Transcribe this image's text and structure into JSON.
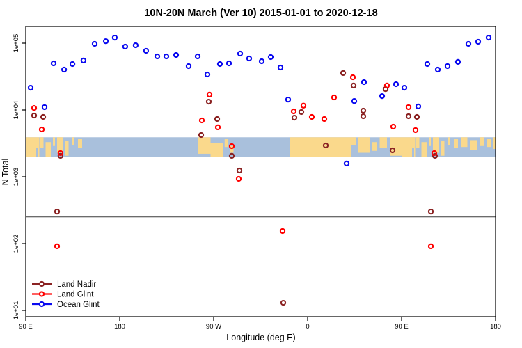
{
  "title": "10N-20N March (Ver 10)   2015-01-01 to 2020-12-18",
  "legend": {
    "entries": [
      "Land Nadir",
      "Land Glint",
      "Ocean Glint"
    ]
  },
  "colors": {
    "land_nadir": "#8b2323",
    "land_glint": "#ff0000",
    "ocean_glint": "#0a0af0",
    "map_ocean": "#a9c0dc",
    "map_land": "#fad98c",
    "reference_line": "#3a3a3a",
    "frame": "#000000"
  },
  "chart_data": {
    "type": "scatter",
    "title": "10N-20N March (Ver 10)   2015-01-01 to 2020-12-18",
    "xlabel": "Longitude (deg E)",
    "ylabel": "N Total",
    "x_axis": {
      "range_deg": [
        0,
        450
      ],
      "ticks": [
        {
          "deg": 0,
          "label": "90 E"
        },
        {
          "deg": 90,
          "label": "180"
        },
        {
          "deg": 180,
          "label": "90 W"
        },
        {
          "deg": 270,
          "label": "0"
        },
        {
          "deg": 360,
          "label": "90 E"
        },
        {
          "deg": 450,
          "label": "180"
        }
      ]
    },
    "y_axis": {
      "scale": "log10",
      "range": [
        8,
        180000
      ],
      "ticks": [
        {
          "value": 10,
          "label": "1e+01"
        },
        {
          "value": 100,
          "label": "1e+02"
        },
        {
          "value": 1000,
          "label": "1e+03"
        },
        {
          "value": 10000,
          "label": "1e+04"
        },
        {
          "value": 100000,
          "label": "1e+05"
        }
      ]
    },
    "reference_line": {
      "value": 250
    },
    "map_band": {
      "top_n": 3900,
      "bottom_n": 2000,
      "land_segments": [
        [
          0,
          13,
          0,
          1
        ],
        [
          13.5,
          17,
          0,
          0.55
        ],
        [
          19,
          24,
          0.25,
          1
        ],
        [
          26,
          28,
          0,
          0.45
        ],
        [
          30,
          36,
          0,
          0.8
        ],
        [
          37.5,
          41,
          0.2,
          0.95
        ],
        [
          44,
          46.5,
          0,
          0.4
        ],
        [
          50,
          54,
          0.1,
          0.55
        ],
        [
          165,
          177,
          0,
          0.85
        ],
        [
          177,
          189,
          0.3,
          1
        ],
        [
          190.5,
          193.5,
          0.1,
          0.5
        ],
        [
          196,
          199,
          0.45,
          0.8
        ],
        [
          253,
          316,
          0,
          1
        ],
        [
          318,
          330,
          0,
          0.8
        ],
        [
          332,
          336,
          0.25,
          0.7
        ],
        [
          339,
          346,
          0,
          0.55
        ],
        [
          349,
          360,
          0,
          0.95
        ],
        [
          360,
          373,
          0,
          1
        ],
        [
          373.5,
          377,
          0,
          0.55
        ],
        [
          379,
          384,
          0.25,
          1
        ],
        [
          386,
          388,
          0,
          0.45
        ],
        [
          390,
          396,
          0,
          0.8
        ],
        [
          397.5,
          401,
          0.2,
          0.95
        ],
        [
          404,
          406.5,
          0,
          0.4
        ],
        [
          410,
          414,
          0.1,
          0.55
        ],
        [
          417,
          423,
          0,
          0.5
        ],
        [
          426,
          432,
          0.15,
          0.65
        ],
        [
          435,
          439,
          0,
          0.45
        ],
        [
          442,
          446,
          0.1,
          0.5
        ],
        [
          447.5,
          450,
          0,
          0.6
        ]
      ],
      "sea_notches": [
        [
          10,
          12,
          0.55,
          1
        ],
        [
          311.5,
          318.5,
          0.4,
          1
        ],
        [
          370,
          372,
          0.55,
          1
        ]
      ]
    },
    "series": [
      {
        "name": "Land Nadir",
        "color": "#8b2323",
        "points": [
          [
            8,
            8260
          ],
          [
            16.7,
            7870
          ],
          [
            30,
            301
          ],
          [
            33.3,
            2060
          ],
          [
            168,
            4220
          ],
          [
            175.3,
            13300
          ],
          [
            183.3,
            7320
          ],
          [
            197.3,
            2060
          ],
          [
            204.7,
            1240
          ],
          [
            246.7,
            13
          ],
          [
            257.3,
            7670
          ],
          [
            264,
            9310
          ],
          [
            287.3,
            2940
          ],
          [
            304,
            35700
          ],
          [
            314,
            23200
          ],
          [
            323.3,
            9770
          ],
          [
            323.3,
            8060
          ],
          [
            344.7,
            20500
          ],
          [
            351.3,
            2490
          ],
          [
            366.7,
            8060
          ],
          [
            374.7,
            7870
          ],
          [
            388,
            301
          ],
          [
            392,
            2060
          ]
        ]
      },
      {
        "name": "Land Glint",
        "color": "#ff0000",
        "points": [
          [
            8,
            10700
          ],
          [
            15.3,
            5110
          ],
          [
            30,
            91
          ],
          [
            33.3,
            2260
          ],
          [
            168.7,
            6980
          ],
          [
            176,
            17000
          ],
          [
            184,
            5500
          ],
          [
            197.3,
            2870
          ],
          [
            204,
            931
          ],
          [
            246,
            154
          ],
          [
            256.7,
            9530
          ],
          [
            266,
            11600
          ],
          [
            274,
            7870
          ],
          [
            286,
            7320
          ],
          [
            295.3,
            15400
          ],
          [
            313.3,
            30900
          ],
          [
            346,
            23200
          ],
          [
            352,
            5620
          ],
          [
            366.7,
            11000
          ],
          [
            373.3,
            4990
          ],
          [
            388,
            91
          ],
          [
            391.3,
            2260
          ]
        ]
      },
      {
        "name": "Ocean Glint",
        "color": "#0a0af0",
        "points": [
          [
            4.7,
            21500
          ],
          [
            18,
            11000
          ],
          [
            26.7,
            49900
          ],
          [
            36.7,
            40200
          ],
          [
            44.7,
            48700
          ],
          [
            55.3,
            55000
          ],
          [
            66,
            97700
          ],
          [
            76.7,
            107000
          ],
          [
            85.3,
            121000
          ],
          [
            95.3,
            88700
          ],
          [
            105.3,
            93100
          ],
          [
            115.3,
            76800
          ],
          [
            126,
            63400
          ],
          [
            134.7,
            63400
          ],
          [
            144,
            66500
          ],
          [
            156,
            45300
          ],
          [
            164.7,
            63400
          ],
          [
            174,
            34000
          ],
          [
            186,
            48700
          ],
          [
            194.7,
            49900
          ],
          [
            205.3,
            69800
          ],
          [
            214,
            59000
          ],
          [
            226,
            53600
          ],
          [
            234.7,
            61900
          ],
          [
            244,
            43200
          ],
          [
            251.3,
            14300
          ],
          [
            307.3,
            1580
          ],
          [
            314.7,
            13600
          ],
          [
            324,
            26100
          ],
          [
            341.3,
            16100
          ],
          [
            354.7,
            24300
          ],
          [
            362.7,
            21500
          ],
          [
            376,
            11300
          ],
          [
            384.7,
            48700
          ],
          [
            394.7,
            40200
          ],
          [
            404,
            45300
          ],
          [
            414,
            52400
          ],
          [
            424,
            97700
          ],
          [
            433.3,
            105000
          ],
          [
            443.3,
            121000
          ]
        ]
      }
    ]
  }
}
